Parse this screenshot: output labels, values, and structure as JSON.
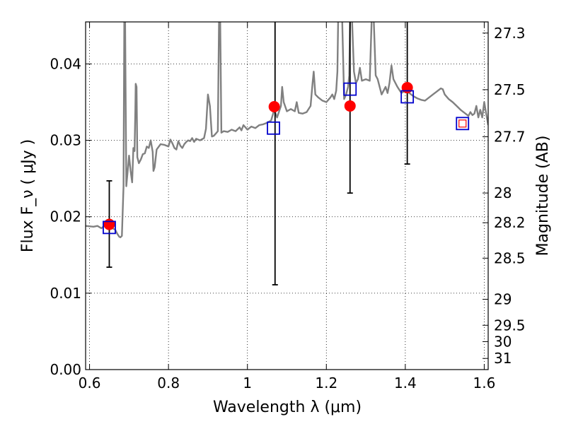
{
  "chart_data": {
    "type": "line",
    "title": "",
    "xlabel": "Wavelength  λ (μm)",
    "ylabel": "Flux  F_ν  ( μJy )",
    "ylabel_right": "Magnitude (AB)",
    "xlim": [
      0.59,
      1.61
    ],
    "ylim": [
      0.0,
      0.0455
    ],
    "x_ticks": [
      0.6,
      0.8,
      1.0,
      1.2,
      1.4,
      1.6
    ],
    "x_tick_labels": [
      "0.6",
      "0.8",
      "1",
      "1.2",
      "1.4",
      "1.6"
    ],
    "y_ticks": [
      0.0,
      0.01,
      0.02,
      0.03,
      0.04
    ],
    "y_tick_labels": [
      "0.00",
      "0.01",
      "0.02",
      "0.03",
      "0.04"
    ],
    "grid": true,
    "grid_style": "dotted",
    "right_axis_ticks": [
      {
        "label": "27.3",
        "flux": 0.04404
      },
      {
        "label": "27.5",
        "flux": 0.03663
      },
      {
        "label": "27.7",
        "flux": 0.03047
      },
      {
        "label": "28",
        "flux": 0.02311
      },
      {
        "label": "28.2",
        "flux": 0.01922
      },
      {
        "label": "28.5",
        "flux": 0.01458
      },
      {
        "label": "29",
        "flux": 0.0092
      },
      {
        "label": "29.5",
        "flux": 0.0058
      },
      {
        "label": "30",
        "flux": 0.00366
      },
      {
        "label": "31",
        "flux": 0.00146
      }
    ],
    "series": [
      {
        "kind": "line",
        "color": "#808080",
        "points": [
          [
            0.59,
            0.0188
          ],
          [
            0.61,
            0.0187
          ],
          [
            0.62,
            0.0188
          ],
          [
            0.63,
            0.0185
          ],
          [
            0.64,
            0.0189
          ],
          [
            0.655,
            0.0186
          ],
          [
            0.665,
            0.0183
          ],
          [
            0.67,
            0.0178
          ],
          [
            0.675,
            0.0174
          ],
          [
            0.678,
            0.0173
          ],
          [
            0.682,
            0.0175
          ],
          [
            0.686,
            0.024
          ],
          [
            0.688,
            0.046
          ],
          [
            0.69,
            0.046
          ],
          [
            0.693,
            0.024
          ],
          [
            0.697,
            0.0262
          ],
          [
            0.7,
            0.028
          ],
          [
            0.704,
            0.026
          ],
          [
            0.708,
            0.0245
          ],
          [
            0.711,
            0.029
          ],
          [
            0.714,
            0.0286
          ],
          [
            0.716,
            0.034
          ],
          [
            0.717,
            0.0374
          ],
          [
            0.719,
            0.037
          ],
          [
            0.721,
            0.0278
          ],
          [
            0.725,
            0.027
          ],
          [
            0.73,
            0.0275
          ],
          [
            0.735,
            0.0282
          ],
          [
            0.74,
            0.0283
          ],
          [
            0.745,
            0.0292
          ],
          [
            0.75,
            0.029
          ],
          [
            0.755,
            0.03
          ],
          [
            0.76,
            0.0285
          ],
          [
            0.762,
            0.026
          ],
          [
            0.765,
            0.0265
          ],
          [
            0.77,
            0.0288
          ],
          [
            0.78,
            0.0295
          ],
          [
            0.79,
            0.0294
          ],
          [
            0.8,
            0.0292
          ],
          [
            0.805,
            0.0301
          ],
          [
            0.81,
            0.0296
          ],
          [
            0.815,
            0.029
          ],
          [
            0.82,
            0.0288
          ],
          [
            0.825,
            0.0299
          ],
          [
            0.83,
            0.0293
          ],
          [
            0.835,
            0.029
          ],
          [
            0.84,
            0.0295
          ],
          [
            0.845,
            0.0298
          ],
          [
            0.85,
            0.03
          ],
          [
            0.855,
            0.0299
          ],
          [
            0.86,
            0.0303
          ],
          [
            0.865,
            0.0298
          ],
          [
            0.87,
            0.0302
          ],
          [
            0.88,
            0.03
          ],
          [
            0.89,
            0.0303
          ],
          [
            0.895,
            0.0315
          ],
          [
            0.9,
            0.036
          ],
          [
            0.905,
            0.0345
          ],
          [
            0.91,
            0.0305
          ],
          [
            0.915,
            0.0306
          ],
          [
            0.92,
            0.0309
          ],
          [
            0.925,
            0.0312
          ],
          [
            0.928,
            0.046
          ],
          [
            0.931,
            0.046
          ],
          [
            0.934,
            0.031
          ],
          [
            0.94,
            0.0312
          ],
          [
            0.95,
            0.0311
          ],
          [
            0.96,
            0.0314
          ],
          [
            0.97,
            0.0312
          ],
          [
            0.98,
            0.0317
          ],
          [
            0.985,
            0.0313
          ],
          [
            0.99,
            0.032
          ],
          [
            1.0,
            0.0314
          ],
          [
            1.01,
            0.0318
          ],
          [
            1.02,
            0.0316
          ],
          [
            1.03,
            0.032
          ],
          [
            1.04,
            0.0321
          ],
          [
            1.05,
            0.0323
          ],
          [
            1.06,
            0.0326
          ],
          [
            1.068,
            0.034
          ],
          [
            1.075,
            0.033
          ],
          [
            1.085,
            0.0345
          ],
          [
            1.088,
            0.037
          ],
          [
            1.092,
            0.035
          ],
          [
            1.1,
            0.0338
          ],
          [
            1.11,
            0.0341
          ],
          [
            1.12,
            0.0338
          ],
          [
            1.125,
            0.035
          ],
          [
            1.13,
            0.0336
          ],
          [
            1.14,
            0.0335
          ],
          [
            1.15,
            0.0337
          ],
          [
            1.16,
            0.0345
          ],
          [
            1.165,
            0.0375
          ],
          [
            1.168,
            0.039
          ],
          [
            1.172,
            0.036
          ],
          [
            1.18,
            0.0356
          ],
          [
            1.19,
            0.0352
          ],
          [
            1.2,
            0.035
          ],
          [
            1.21,
            0.0356
          ],
          [
            1.215,
            0.036
          ],
          [
            1.22,
            0.0354
          ],
          [
            1.225,
            0.0365
          ],
          [
            1.228,
            0.039
          ],
          [
            1.23,
            0.046
          ],
          [
            1.24,
            0.046
          ],
          [
            1.245,
            0.0354
          ],
          [
            1.25,
            0.036
          ],
          [
            1.255,
            0.037
          ],
          [
            1.258,
            0.0385
          ],
          [
            1.26,
            0.046
          ],
          [
            1.265,
            0.046
          ],
          [
            1.27,
            0.039
          ],
          [
            1.275,
            0.0375
          ],
          [
            1.28,
            0.038
          ],
          [
            1.285,
            0.0395
          ],
          [
            1.29,
            0.0378
          ],
          [
            1.3,
            0.038
          ],
          [
            1.31,
            0.0378
          ],
          [
            1.315,
            0.046
          ],
          [
            1.32,
            0.046
          ],
          [
            1.325,
            0.0385
          ],
          [
            1.33,
            0.038
          ],
          [
            1.335,
            0.037
          ],
          [
            1.34,
            0.036
          ],
          [
            1.345,
            0.0365
          ],
          [
            1.35,
            0.037
          ],
          [
            1.355,
            0.0362
          ],
          [
            1.36,
            0.0375
          ],
          [
            1.365,
            0.0398
          ],
          [
            1.37,
            0.038
          ],
          [
            1.38,
            0.037
          ],
          [
            1.39,
            0.0362
          ],
          [
            1.4,
            0.0365
          ],
          [
            1.41,
            0.0362
          ],
          [
            1.42,
            0.0358
          ],
          [
            1.43,
            0.0355
          ],
          [
            1.44,
            0.0353
          ],
          [
            1.45,
            0.0352
          ],
          [
            1.46,
            0.0356
          ],
          [
            1.47,
            0.036
          ],
          [
            1.48,
            0.0364
          ],
          [
            1.49,
            0.0368
          ],
          [
            1.495,
            0.0367
          ],
          [
            1.5,
            0.036
          ],
          [
            1.51,
            0.0354
          ],
          [
            1.52,
            0.035
          ],
          [
            1.53,
            0.0345
          ],
          [
            1.54,
            0.034
          ],
          [
            1.55,
            0.0336
          ],
          [
            1.56,
            0.0332
          ],
          [
            1.565,
            0.0337
          ],
          [
            1.57,
            0.0333
          ],
          [
            1.575,
            0.0335
          ],
          [
            1.58,
            0.0345
          ],
          [
            1.585,
            0.033
          ],
          [
            1.59,
            0.034
          ],
          [
            1.595,
            0.033
          ],
          [
            1.6,
            0.035
          ],
          [
            1.605,
            0.0335
          ],
          [
            1.61,
            0.032
          ]
        ]
      },
      {
        "kind": "errorbar",
        "color": "#000000",
        "points": [
          {
            "x": 0.65,
            "lo": 0.0134,
            "hi": 0.0247
          },
          {
            "x": 1.07,
            "lo": 0.0111,
            "hi": 0.046
          },
          {
            "x": 1.26,
            "lo": 0.0231,
            "hi": 0.046
          },
          {
            "x": 1.405,
            "lo": 0.0269,
            "hi": 0.046
          }
        ]
      },
      {
        "kind": "scatter",
        "marker": "circle",
        "color": "#ff0000",
        "points": [
          [
            0.65,
            0.019
          ],
          [
            1.068,
            0.0344
          ],
          [
            1.26,
            0.0345
          ],
          [
            1.405,
            0.0369
          ]
        ]
      },
      {
        "kind": "scatter",
        "marker": "open-square",
        "color": "#0000cc",
        "points": [
          [
            0.65,
            0.0186
          ],
          [
            1.066,
            0.0316
          ],
          [
            1.26,
            0.0367
          ],
          [
            1.405,
            0.0357
          ],
          [
            1.545,
            0.0322
          ]
        ]
      },
      {
        "kind": "scatter",
        "marker": "small-open-square",
        "color": "#ff0000",
        "points": [
          [
            1.545,
            0.0322
          ]
        ]
      }
    ]
  }
}
